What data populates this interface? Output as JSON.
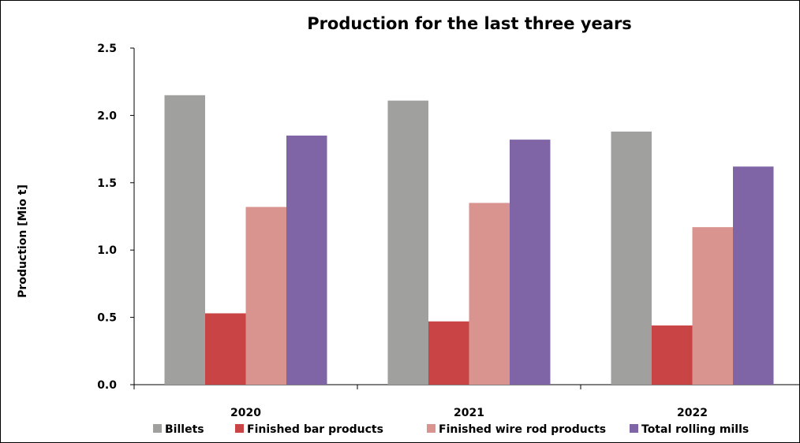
{
  "chart_data": {
    "type": "bar",
    "title": "Production for the last three years",
    "xlabel": "",
    "ylabel": "Production [Mio t]",
    "ylim": [
      0,
      2.5
    ],
    "yticks": [
      "0.0",
      "0.5",
      "1.0",
      "1.5",
      "2.0",
      "2.5"
    ],
    "categories": [
      "2020",
      "2021",
      "2022"
    ],
    "series": [
      {
        "name": "Billets",
        "color": "#A0A09E",
        "values": [
          2.15,
          2.11,
          1.88
        ]
      },
      {
        "name": "Finished bar products",
        "color": "#C94545",
        "values": [
          0.53,
          0.47,
          0.44
        ]
      },
      {
        "name": "Finished wire rod products",
        "color": "#D9948F",
        "values": [
          1.32,
          1.35,
          1.17
        ]
      },
      {
        "name": "Total rolling mills",
        "color": "#7F64A6",
        "values": [
          1.85,
          1.82,
          1.62
        ]
      }
    ],
    "legend_position": "bottom",
    "grid": false
  }
}
